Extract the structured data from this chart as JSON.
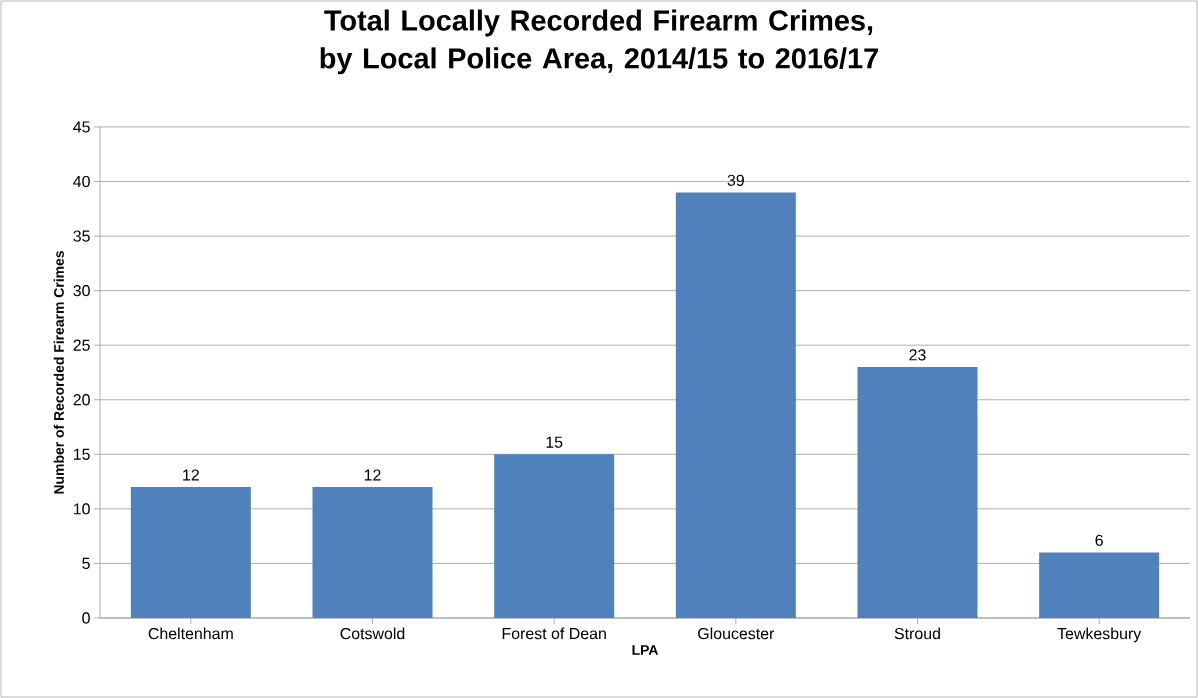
{
  "chart_data": {
    "type": "bar",
    "title": "Total Locally Recorded Firearm Crimes, by Local Police Area, 2014/15 to 2016/17",
    "xlabel": "LPA",
    "ylabel": "Number of Recorded Firearm Crimes",
    "categories": [
      "Cheltenham",
      "Cotswold",
      "Forest of Dean",
      "Gloucester",
      "Stroud",
      "Tewkesbury"
    ],
    "values": [
      12,
      12,
      15,
      39,
      23,
      6
    ],
    "color": "#4f81bd",
    "ylim": [
      0,
      45
    ],
    "yticks": [
      0,
      5,
      10,
      15,
      20,
      25,
      30,
      35,
      40,
      45
    ],
    "grid": "y",
    "data_labels": true
  }
}
